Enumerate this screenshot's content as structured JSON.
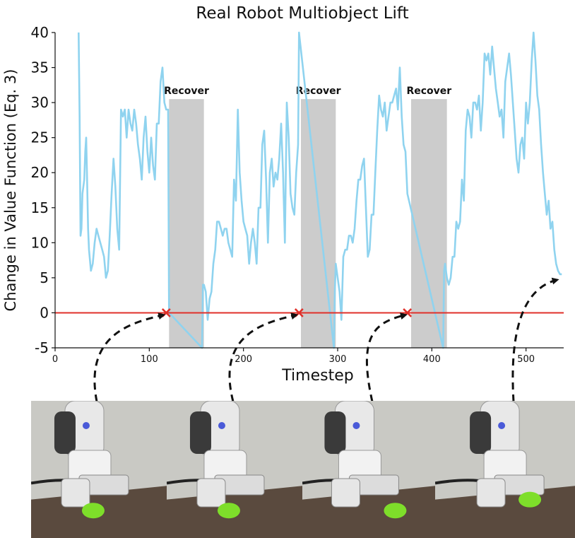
{
  "chart_data": {
    "type": "line",
    "title": "Real Robot Multiobject Lift",
    "xlabel": "Timestep",
    "ylabel": "Change in Value Function (Eq. 3)",
    "xlim": [
      0,
      540
    ],
    "ylim": [
      -5,
      40
    ],
    "xticks": [
      0,
      100,
      200,
      300,
      400,
      500
    ],
    "yticks": [
      -5,
      0,
      5,
      10,
      15,
      20,
      25,
      30,
      35,
      40
    ],
    "grid": false,
    "series": [
      {
        "color": "#8fd3ef",
        "x": [
          25,
          26,
          27,
          28,
          29,
          30,
          31,
          32,
          33,
          34,
          35,
          36,
          38,
          40,
          42,
          44,
          46,
          48,
          50,
          52,
          54,
          56,
          58,
          60,
          62,
          64,
          66,
          68,
          70,
          72,
          74,
          76,
          78,
          80,
          82,
          84,
          86,
          88,
          90,
          92,
          94,
          96,
          98,
          100,
          102,
          104,
          106,
          108,
          110,
          112,
          114,
          116,
          118,
          120,
          121,
          156,
          157,
          158,
          160,
          162,
          164,
          166,
          168,
          170,
          172,
          174,
          176,
          178,
          180,
          182,
          184,
          186,
          188,
          190,
          192,
          194,
          196,
          198,
          200,
          202,
          204,
          206,
          208,
          210,
          212,
          214,
          216,
          218,
          220,
          222,
          224,
          226,
          228,
          230,
          232,
          234,
          236,
          238,
          240,
          242,
          244,
          246,
          248,
          250,
          252,
          254,
          256,
          258,
          259,
          296,
          297,
          298,
          300,
          302,
          304,
          306,
          308,
          310,
          312,
          314,
          316,
          318,
          320,
          322,
          324,
          326,
          328,
          330,
          332,
          334,
          336,
          338,
          340,
          342,
          344,
          346,
          348,
          350,
          352,
          354,
          356,
          358,
          360,
          362,
          364,
          366,
          368,
          370,
          372,
          374,
          412,
          413,
          414,
          416,
          418,
          420,
          422,
          424,
          426,
          428,
          430,
          432,
          434,
          436,
          438,
          440,
          442,
          444,
          446,
          448,
          450,
          452,
          454,
          456,
          458,
          460,
          462,
          464,
          466,
          468,
          470,
          472,
          474,
          476,
          478,
          480,
          482,
          484,
          486,
          488,
          490,
          492,
          494,
          496,
          498,
          500,
          502,
          504,
          506,
          508,
          510,
          512,
          514,
          516,
          518,
          520,
          522,
          524,
          526,
          528,
          530,
          532,
          534,
          536,
          538
        ],
        "y": [
          40,
          28,
          11,
          12,
          17,
          18,
          19,
          23,
          25,
          19,
          12,
          9,
          6,
          7,
          10,
          12,
          11,
          10,
          9,
          8,
          5,
          6,
          11,
          17,
          22,
          18,
          12,
          9,
          29,
          28,
          29,
          25,
          29,
          27,
          26,
          29,
          27,
          24,
          22,
          19,
          25,
          28,
          23,
          20,
          25,
          21,
          19,
          27,
          27,
          33,
          35,
          30,
          29,
          29,
          0,
          -5,
          4,
          4,
          3,
          -1,
          2,
          3,
          7,
          9,
          13,
          13,
          12,
          11,
          12,
          12,
          10,
          9,
          8,
          19,
          16,
          29,
          20,
          16,
          13,
          12,
          11,
          7,
          10,
          12,
          10,
          7,
          15,
          15,
          24,
          26,
          19,
          10,
          20,
          22,
          18,
          20,
          19,
          22,
          27,
          20,
          10,
          30,
          25,
          17,
          15,
          14,
          20,
          24,
          40,
          -5,
          3,
          7,
          5,
          3,
          -1,
          8,
          9,
          9,
          11,
          11,
          10,
          12,
          16,
          19,
          19,
          21,
          22,
          15,
          8,
          9,
          14,
          14,
          20,
          26,
          31,
          29,
          28,
          30,
          26,
          28,
          30,
          30,
          31,
          32,
          29,
          35,
          28,
          24,
          23,
          17,
          -5,
          6,
          7,
          5,
          4,
          5,
          8,
          8,
          13,
          12,
          13,
          19,
          16,
          26,
          29,
          28,
          25,
          30,
          30,
          29,
          31,
          26,
          30,
          37,
          36,
          37,
          34,
          38,
          35,
          32,
          30,
          28,
          29,
          25,
          33,
          35,
          37,
          34,
          30,
          26,
          22,
          20,
          24,
          25,
          22,
          30,
          27,
          30,
          36,
          40,
          36,
          31,
          29,
          24,
          20,
          17,
          14,
          16,
          12,
          13,
          9,
          7,
          6,
          5.5,
          5.5
        ]
      }
    ],
    "threshold_line": {
      "y": 0,
      "color": "#e0302a"
    },
    "failure_markers": [
      {
        "x": 118,
        "y": 0
      },
      {
        "x": 259,
        "y": 0
      },
      {
        "x": 374,
        "y": 0
      }
    ],
    "recover_regions": [
      {
        "x_start": 121,
        "x_end": 158,
        "label": "Recover"
      },
      {
        "x_start": 261,
        "x_end": 298,
        "label": "Recover"
      },
      {
        "x_start": 378,
        "x_end": 416,
        "label": "Recover"
      }
    ],
    "arrow_targets": [
      {
        "x": 115,
        "y": 0
      },
      {
        "x": 256,
        "y": 0
      },
      {
        "x": 372,
        "y": 0
      },
      {
        "x": 533,
        "y": 5
      }
    ]
  },
  "colors": {
    "series": "#8fd3ef",
    "threshold": "#e0302a",
    "recover": "#cccccc",
    "marker": "#e0302a"
  },
  "photos": [
    {
      "icon": "robot-arm-photo"
    },
    {
      "icon": "robot-arm-photo"
    },
    {
      "icon": "robot-arm-photo"
    },
    {
      "icon": "robot-arm-photo"
    }
  ]
}
